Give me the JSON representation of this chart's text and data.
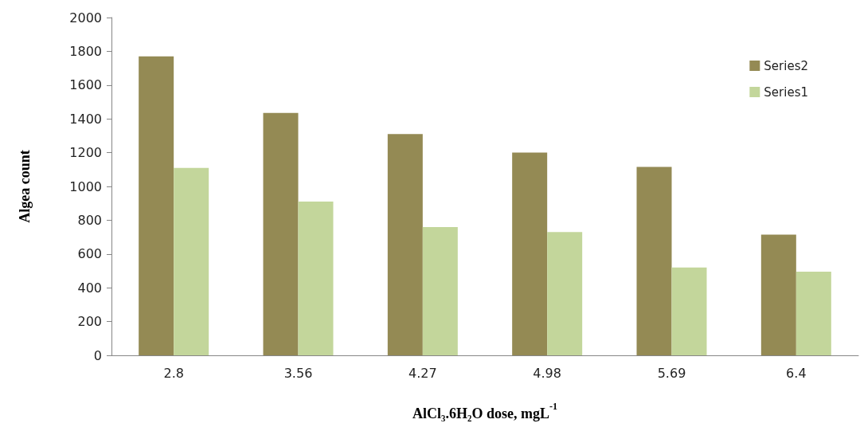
{
  "chart_data": {
    "type": "bar",
    "xlabel": "AlCl₃.6H₂O dose, mgL$^{-1}$",
    "ylabel": "Algea count",
    "categories": [
      "2.8",
      "3.56",
      "4.27",
      "4.98",
      "5.69",
      "6.4"
    ],
    "series": [
      {
        "name": "Series2",
        "color": "#948a54",
        "values": [
          1770,
          1435,
          1310,
          1200,
          1115,
          715
        ]
      },
      {
        "name": "Series1",
        "color": "#c3d69b",
        "values": [
          1110,
          910,
          760,
          730,
          520,
          495
        ]
      }
    ],
    "ylim": [
      0,
      2000
    ],
    "yticks": [
      0,
      200,
      400,
      600,
      800,
      1000,
      1200,
      1400,
      1600,
      1800,
      2000
    ],
    "grid": false,
    "legend": "top right"
  }
}
